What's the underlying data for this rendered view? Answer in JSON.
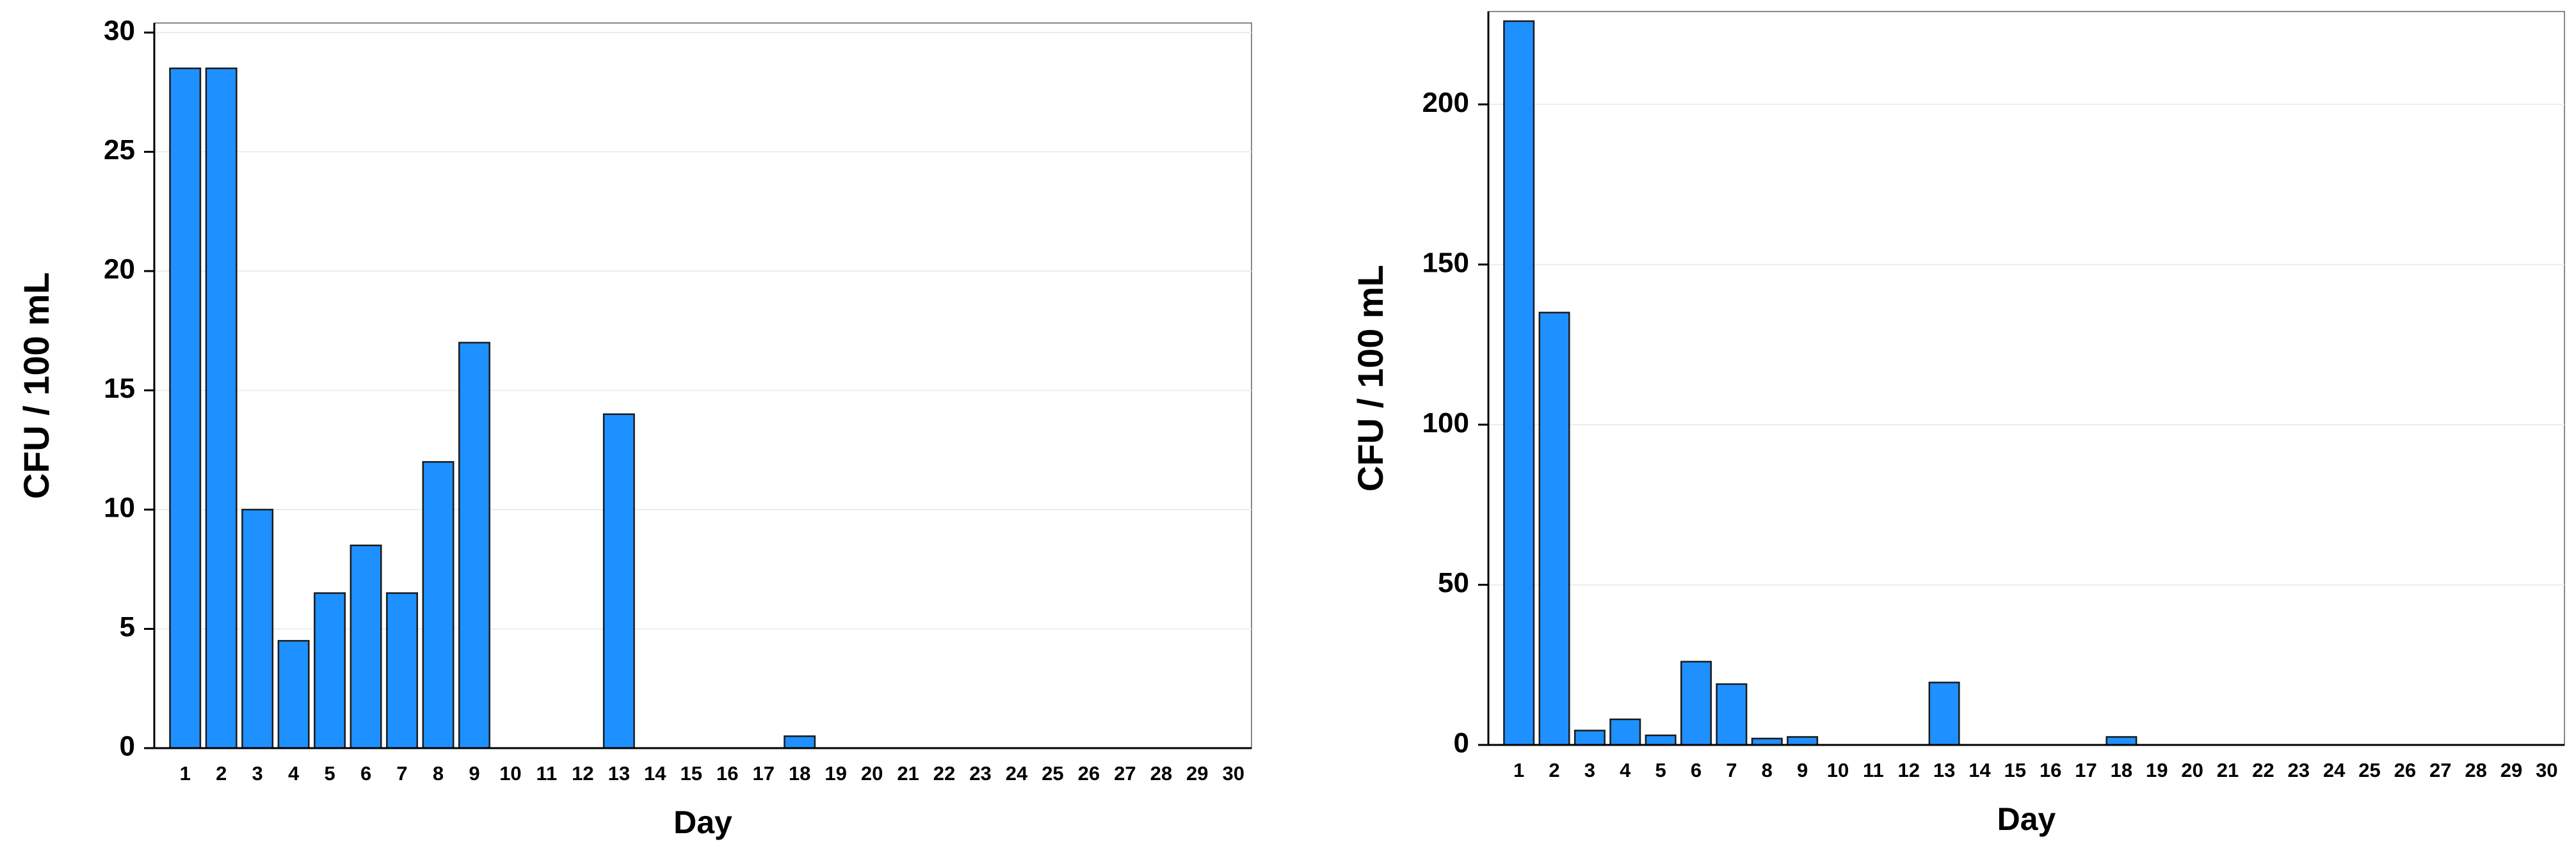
{
  "chart_data": [
    {
      "type": "bar",
      "xlabel": "Day",
      "ylabel": "CFU / 100 mL",
      "color": "#1e90ff",
      "grid": true,
      "categories": [
        "1",
        "2",
        "3",
        "4",
        "5",
        "6",
        "7",
        "8",
        "9",
        "10",
        "11",
        "12",
        "13",
        "14",
        "15",
        "16",
        "17",
        "18",
        "19",
        "20",
        "21",
        "22",
        "23",
        "24",
        "25",
        "26",
        "27",
        "28",
        "29",
        "30"
      ],
      "values": [
        28.5,
        28.5,
        10,
        4.5,
        6.5,
        8.5,
        6.5,
        12,
        17,
        0,
        0,
        0,
        14,
        0,
        0,
        0,
        0,
        0.5,
        0,
        0,
        0,
        0,
        0,
        0,
        0,
        0,
        0,
        0,
        0,
        0
      ],
      "ylim": [
        0,
        30.4
      ],
      "yticks": [
        0,
        5,
        10,
        15,
        20,
        25,
        30
      ]
    },
    {
      "type": "bar",
      "xlabel": "Day",
      "ylabel": "CFU / 100 mL",
      "color": "#1e90ff",
      "grid": true,
      "categories": [
        "1",
        "2",
        "3",
        "4",
        "5",
        "6",
        "7",
        "8",
        "9",
        "10",
        "11",
        "12",
        "13",
        "14",
        "15",
        "16",
        "17",
        "18",
        "19",
        "20",
        "21",
        "22",
        "23",
        "24",
        "25",
        "26",
        "27",
        "28",
        "29",
        "30"
      ],
      "values": [
        226,
        135,
        4.5,
        8,
        3,
        26,
        19,
        2,
        2.5,
        0,
        0,
        0,
        19.5,
        0,
        0,
        0,
        0,
        2.5,
        0,
        0,
        0,
        0,
        0,
        0,
        0,
        0,
        0,
        0,
        0,
        0
      ],
      "ylim": [
        0,
        229
      ],
      "yticks": [
        0,
        50,
        100,
        150,
        200
      ]
    }
  ]
}
